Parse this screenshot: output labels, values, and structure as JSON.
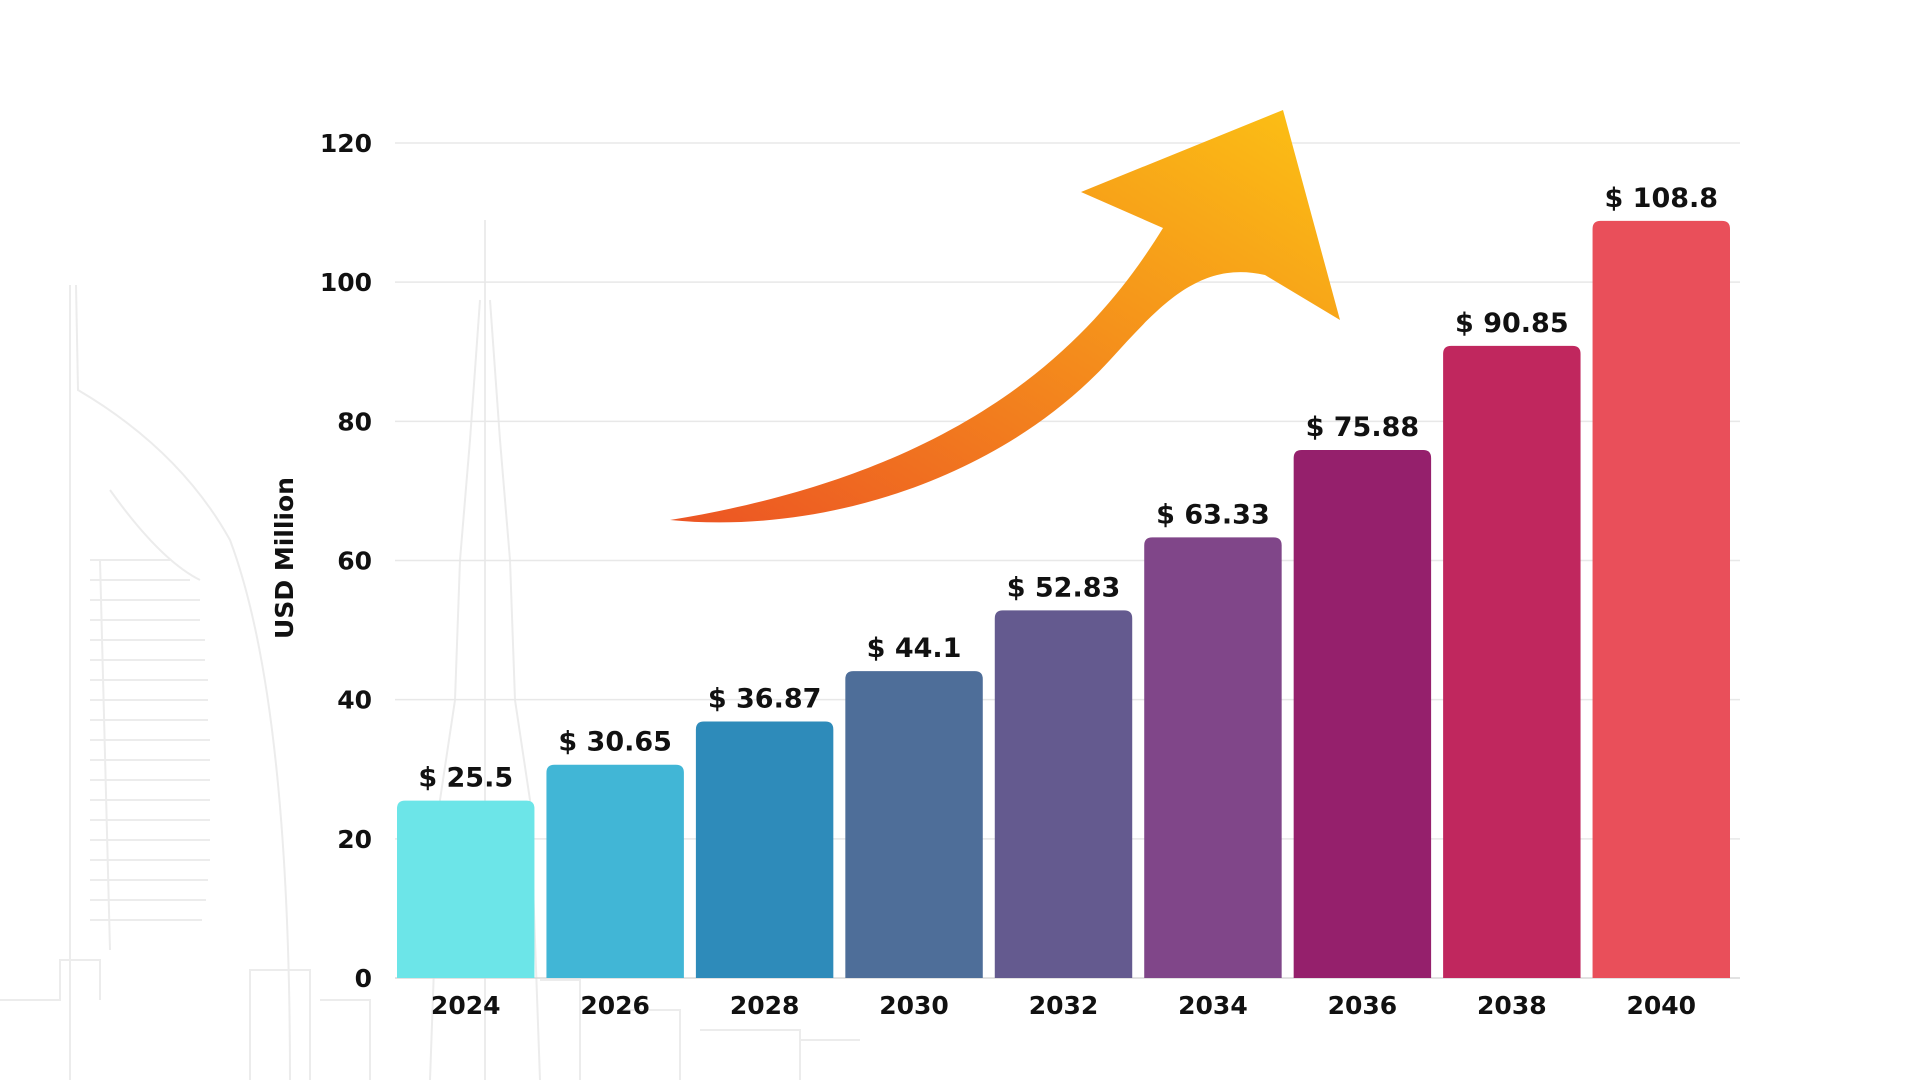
{
  "chart_data": {
    "type": "bar",
    "title": "",
    "xlabel": "",
    "ylabel": "USD Million",
    "ylim": [
      0,
      120
    ],
    "yticks": [
      0,
      20,
      40,
      60,
      80,
      100,
      120
    ],
    "grid": true,
    "categories": [
      "2024",
      "2026",
      "2028",
      "2030",
      "2032",
      "2034",
      "2036",
      "2038",
      "2040"
    ],
    "values": [
      25.5,
      30.65,
      36.87,
      44.1,
      52.83,
      63.33,
      75.88,
      90.85,
      108.8
    ],
    "data_labels": [
      "$ 25.5",
      "$ 30.65",
      "$ 36.87",
      "$ 44.1",
      "$ 52.83",
      "$ 63.33",
      "$ 75.88",
      "$ 90.85",
      "$ 108.8"
    ],
    "colors": [
      "#6ce5e8",
      "#41b6d6",
      "#2e8bba",
      "#4e6e99",
      "#645a8f",
      "#804689",
      "#95206c",
      "#c0275e",
      "#e94f5a"
    ],
    "decoration": {
      "arrow": "upward-growth-arrow",
      "arrow_colors": [
        "#ee5a24",
        "#fbbf14"
      ],
      "background": "city-skyline-outline"
    }
  }
}
